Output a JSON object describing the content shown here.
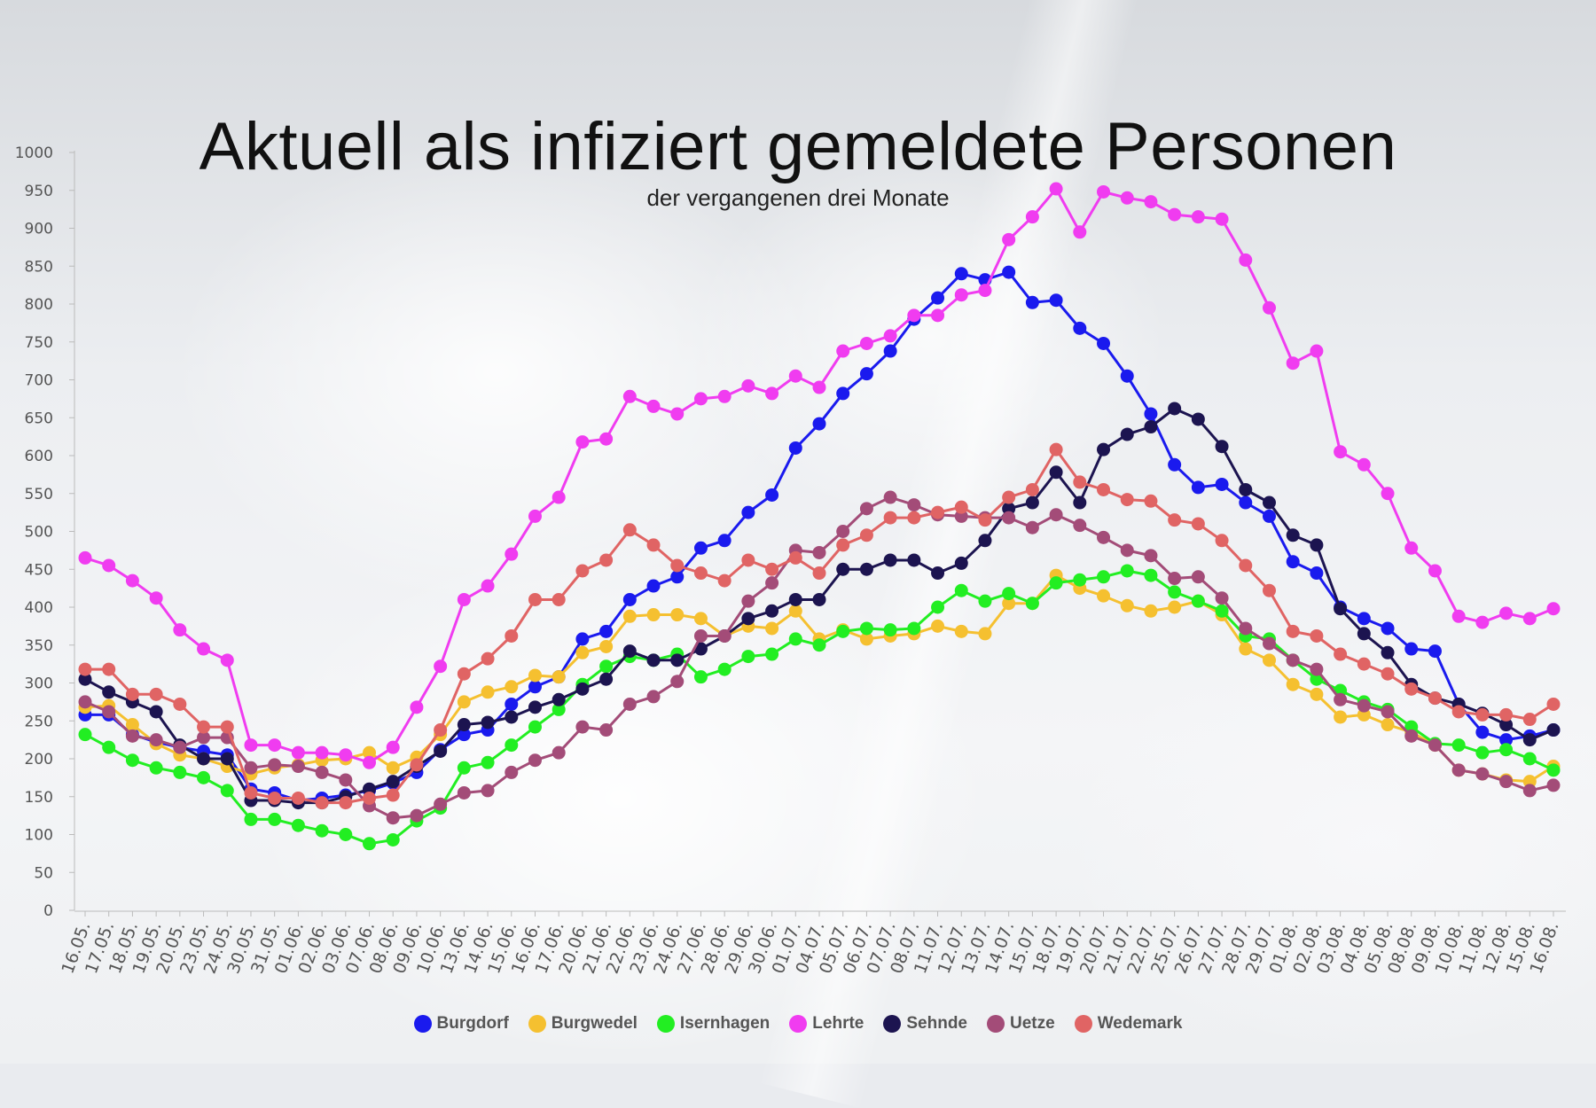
{
  "chart_data": {
    "type": "line",
    "title": "Aktuell als infiziert gemeldete Personen",
    "subtitle": "der vergangenen drei Monate",
    "xlabel": "",
    "ylabel": "",
    "ylim": [
      0,
      1000
    ],
    "yticks": [
      "0",
      "50",
      "100",
      "150",
      "200",
      "250",
      "300",
      "350",
      "400",
      "450",
      "500",
      "550",
      "600",
      "650",
      "700",
      "750",
      "800",
      "850",
      "900",
      "950",
      "1000"
    ],
    "grid": false,
    "legend_position": "bottom",
    "categories": [
      "16.05.",
      "17.05.",
      "18.05.",
      "19.05.",
      "20.05.",
      "23.05.",
      "24.05.",
      "30.05.",
      "31.05.",
      "01.06.",
      "02.06.",
      "03.06.",
      "07.06.",
      "08.06.",
      "09.06.",
      "10.06.",
      "13.06.",
      "14.06.",
      "15.06.",
      "16.06.",
      "17.06.",
      "20.06.",
      "21.06.",
      "22.06.",
      "23.06.",
      "24.06.",
      "27.06.",
      "28.06.",
      "29.06.",
      "30.06.",
      "01.07.",
      "04.07.",
      "05.07.",
      "06.07.",
      "07.07.",
      "08.07.",
      "11.07.",
      "12.07.",
      "13.07.",
      "14.07.",
      "15.07.",
      "18.07.",
      "19.07.",
      "20.07.",
      "21.07.",
      "22.07.",
      "25.07.",
      "26.07.",
      "27.07.",
      "28.07.",
      "29.07.",
      "01.08.",
      "02.08.",
      "03.08.",
      "04.08.",
      "05.08.",
      "08.08.",
      "09.08.",
      "10.08.",
      "11.08.",
      "12.08.",
      "15.08.",
      "16.08."
    ],
    "series": [
      {
        "name": "Burgdorf",
        "color": "#1a1aee",
        "values": [
          258,
          258,
          232,
          222,
          215,
          210,
          205,
          160,
          155,
          145,
          148,
          152,
          158,
          168,
          182,
          212,
          232,
          238,
          272,
          295,
          308,
          358,
          368,
          410,
          428,
          440,
          478,
          488,
          525,
          548,
          610,
          642,
          682,
          708,
          738,
          780,
          808,
          840,
          832,
          842,
          802,
          805,
          768,
          748,
          705,
          655,
          588,
          558,
          562,
          538,
          520,
          460,
          445,
          400,
          385,
          372,
          345,
          342,
          272,
          235,
          225,
          230,
          238
        ]
      },
      {
        "name": "Burgwedel",
        "color": "#f5c030",
        "values": [
          268,
          270,
          245,
          220,
          205,
          200,
          190,
          180,
          188,
          192,
          198,
          200,
          208,
          188,
          202,
          232,
          275,
          288,
          295,
          310,
          308,
          340,
          348,
          388,
          390,
          390,
          385,
          362,
          375,
          372,
          395,
          358,
          370,
          358,
          362,
          365,
          375,
          368,
          365,
          405,
          405,
          442,
          425,
          415,
          402,
          395,
          400,
          408,
          390,
          345,
          330,
          298,
          285,
          255,
          258,
          245,
          235,
          218,
          185,
          180,
          172,
          170,
          190
        ]
      },
      {
        "name": "Isernhagen",
        "color": "#22ee22",
        "values": [
          232,
          215,
          198,
          188,
          182,
          175,
          158,
          120,
          120,
          112,
          105,
          100,
          88,
          93,
          118,
          135,
          188,
          195,
          218,
          242,
          265,
          298,
          322,
          335,
          330,
          338,
          308,
          318,
          335,
          338,
          358,
          350,
          368,
          372,
          370,
          372,
          400,
          422,
          408,
          418,
          405,
          432,
          436,
          440,
          448,
          442,
          420,
          408,
          395,
          362,
          358,
          330,
          305,
          290,
          275,
          265,
          242,
          220,
          218,
          208,
          212,
          200,
          185
        ]
      },
      {
        "name": "Lehrte",
        "color": "#f03cf0",
        "values": [
          465,
          455,
          435,
          412,
          370,
          345,
          330,
          218,
          218,
          208,
          208,
          205,
          195,
          215,
          268,
          322,
          410,
          428,
          470,
          520,
          545,
          618,
          622,
          678,
          665,
          655,
          675,
          678,
          692,
          682,
          705,
          690,
          738,
          748,
          758,
          785,
          785,
          812,
          818,
          885,
          915,
          952,
          895,
          948,
          940,
          935,
          918,
          915,
          912,
          858,
          795,
          722,
          738,
          605,
          588,
          550,
          478,
          448,
          388,
          380,
          392,
          385,
          398
        ]
      },
      {
        "name": "Sehnde",
        "color": "#1c1450",
        "values": [
          305,
          288,
          275,
          262,
          218,
          200,
          200,
          145,
          145,
          142,
          142,
          150,
          160,
          170,
          190,
          210,
          245,
          248,
          255,
          268,
          278,
          292,
          305,
          342,
          330,
          330,
          345,
          362,
          385,
          395,
          410,
          410,
          450,
          450,
          462,
          462,
          445,
          458,
          488,
          530,
          538,
          578,
          538,
          608,
          628,
          638,
          662,
          648,
          612,
          555,
          538,
          495,
          482,
          398,
          365,
          340,
          298,
          280,
          272,
          260,
          245,
          225,
          238
        ]
      },
      {
        "name": "Uetze",
        "color": "#a34c78",
        "values": [
          275,
          262,
          230,
          225,
          215,
          228,
          228,
          188,
          192,
          190,
          182,
          172,
          138,
          122,
          125,
          140,
          155,
          158,
          182,
          198,
          208,
          242,
          238,
          272,
          282,
          302,
          362,
          362,
          408,
          432,
          475,
          472,
          500,
          530,
          545,
          535,
          522,
          520,
          518,
          518,
          505,
          522,
          508,
          492,
          475,
          468,
          438,
          440,
          412,
          372,
          352,
          330,
          318,
          278,
          270,
          262,
          230,
          218,
          185,
          180,
          170,
          158,
          165
        ]
      },
      {
        "name": "Wedemark",
        "color": "#e06464",
        "values": [
          318,
          318,
          285,
          285,
          272,
          242,
          242,
          155,
          148,
          148,
          142,
          142,
          148,
          152,
          192,
          238,
          312,
          332,
          362,
          410,
          410,
          448,
          462,
          502,
          482,
          455,
          445,
          435,
          462,
          450,
          465,
          445,
          482,
          495,
          518,
          518,
          525,
          532,
          515,
          545,
          555,
          608,
          565,
          555,
          542,
          540,
          515,
          510,
          488,
          455,
          422,
          368,
          362,
          338,
          325,
          312,
          292,
          280,
          262,
          258,
          258,
          252,
          272
        ]
      }
    ]
  }
}
